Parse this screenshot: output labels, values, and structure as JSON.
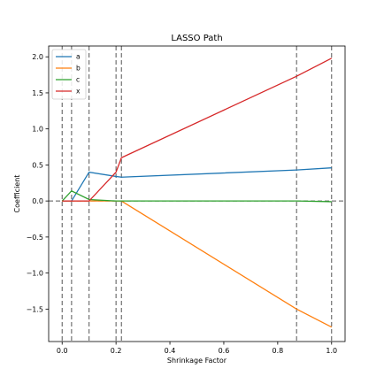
{
  "chart_data": {
    "type": "line",
    "title": "LASSO Path",
    "xlabel": "Shrinkage Factor",
    "ylabel": "Coefficient",
    "xlim": [
      -0.05,
      1.05
    ],
    "ylim": [
      -1.95,
      2.15
    ],
    "x_ticks": [
      0.0,
      0.2,
      0.4,
      0.6,
      0.8,
      1.0
    ],
    "x_tick_labels": [
      "0.0",
      "0.2",
      "0.4",
      "0.6",
      "0.8",
      "1.0"
    ],
    "y_ticks": [
      2.0,
      1.5,
      1.0,
      0.5,
      0.0,
      -0.5,
      -1.0,
      -1.5
    ],
    "y_tick_labels": [
      "2.0",
      "1.5",
      "1.0",
      "0.5",
      "0.0",
      "−0.5",
      "−1.0",
      "−1.5"
    ],
    "grid": false,
    "legend_position": "top-left",
    "vertical_lines": [
      0.0,
      0.035,
      0.1,
      0.2,
      0.22,
      0.87,
      1.0
    ],
    "horizontal_reference": 0.0,
    "series": [
      {
        "name": "a",
        "color": "#1f77b4",
        "x": [
          0.0,
          0.035,
          0.1,
          0.2,
          0.22,
          0.87,
          1.0
        ],
        "y": [
          0.0,
          0.0,
          0.4,
          0.34,
          0.33,
          0.43,
          0.46
        ]
      },
      {
        "name": "b",
        "color": "#ff7f0e",
        "x": [
          0.0,
          0.035,
          0.1,
          0.2,
          0.22,
          0.87,
          1.0
        ],
        "y": [
          0.0,
          0.0,
          0.0,
          0.0,
          0.0,
          -1.5,
          -1.75
        ]
      },
      {
        "name": "c",
        "color": "#2ca02c",
        "x": [
          0.0,
          0.035,
          0.1,
          0.2,
          0.22,
          0.87,
          1.0
        ],
        "y": [
          0.0,
          0.14,
          0.02,
          0.0,
          0.0,
          0.0,
          -0.01
        ]
      },
      {
        "name": "x",
        "color": "#d62728",
        "x": [
          0.0,
          0.035,
          0.1,
          0.2,
          0.22,
          0.87,
          1.0
        ],
        "y": [
          0.0,
          0.0,
          0.0,
          0.4,
          0.6,
          1.73,
          1.98
        ]
      }
    ]
  }
}
